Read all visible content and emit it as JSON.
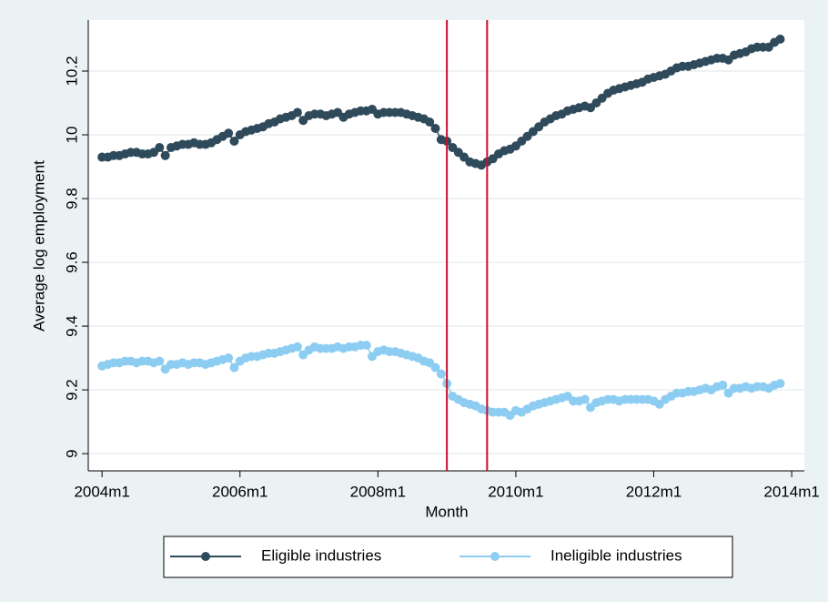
{
  "chart_data": {
    "type": "line",
    "y_label": "Average log employment",
    "x_label": "Month",
    "x": [
      528,
      529,
      530,
      531,
      532,
      533,
      534,
      535,
      536,
      537,
      538,
      539,
      540,
      541,
      542,
      543,
      544,
      545,
      546,
      547,
      548,
      549,
      550,
      551,
      552,
      553,
      554,
      555,
      556,
      557,
      558,
      559,
      560,
      561,
      562,
      563,
      564,
      565,
      566,
      567,
      568,
      569,
      570,
      571,
      572,
      573,
      574,
      575,
      576,
      577,
      578,
      579,
      580,
      581,
      582,
      583,
      584,
      585,
      586,
      587,
      588,
      589,
      590,
      591,
      592,
      593,
      594,
      595,
      596,
      597,
      598,
      599,
      600,
      601,
      602,
      603,
      604,
      605,
      606,
      607,
      608,
      609,
      610,
      611,
      612,
      613,
      614,
      615,
      616,
      617,
      618,
      619,
      620,
      621,
      622,
      623,
      624,
      625,
      626,
      627,
      628,
      629,
      630,
      631,
      632,
      633,
      634,
      635,
      636,
      637,
      638,
      639,
      640,
      641,
      642,
      643,
      644,
      645,
      646
    ],
    "series": [
      {
        "name": "Eligible industries",
        "color": "#2e4a5b",
        "values": [
          9.93,
          9.93,
          9.935,
          9.935,
          9.94,
          9.945,
          9.945,
          9.94,
          9.94,
          9.945,
          9.96,
          9.935,
          9.96,
          9.965,
          9.97,
          9.97,
          9.975,
          9.97,
          9.97,
          9.975,
          9.985,
          9.995,
          10.005,
          9.98,
          10.0,
          10.01,
          10.015,
          10.02,
          10.025,
          10.035,
          10.04,
          10.05,
          10.055,
          10.06,
          10.07,
          10.045,
          10.06,
          10.065,
          10.065,
          10.06,
          10.065,
          10.07,
          10.055,
          10.065,
          10.07,
          10.075,
          10.075,
          10.08,
          10.065,
          10.07,
          10.07,
          10.07,
          10.07,
          10.065,
          10.06,
          10.055,
          10.05,
          10.04,
          10.02,
          9.985,
          9.98,
          9.96,
          9.945,
          9.93,
          9.915,
          9.91,
          9.905,
          9.915,
          9.925,
          9.94,
          9.95,
          9.955,
          9.965,
          9.98,
          9.995,
          10.01,
          10.025,
          10.04,
          10.05,
          10.06,
          10.065,
          10.075,
          10.08,
          10.085,
          10.09,
          10.085,
          10.1,
          10.115,
          10.13,
          10.14,
          10.145,
          10.15,
          10.155,
          10.16,
          10.165,
          10.175,
          10.18,
          10.185,
          10.19,
          10.2,
          10.21,
          10.215,
          10.215,
          10.22,
          10.225,
          10.23,
          10.235,
          10.24,
          10.24,
          10.235,
          10.25,
          10.255,
          10.26,
          10.27,
          10.275,
          10.275,
          10.275,
          10.29,
          10.3
        ]
      },
      {
        "name": "Ineligible industries",
        "color": "#8ecdf2",
        "values": [
          9.275,
          9.28,
          9.285,
          9.285,
          9.29,
          9.29,
          9.285,
          9.29,
          9.29,
          9.285,
          9.29,
          9.265,
          9.28,
          9.28,
          9.285,
          9.28,
          9.285,
          9.285,
          9.28,
          9.285,
          9.29,
          9.295,
          9.3,
          9.27,
          9.29,
          9.3,
          9.305,
          9.305,
          9.31,
          9.315,
          9.315,
          9.32,
          9.325,
          9.33,
          9.335,
          9.31,
          9.325,
          9.335,
          9.33,
          9.33,
          9.33,
          9.335,
          9.33,
          9.335,
          9.335,
          9.34,
          9.34,
          9.305,
          9.32,
          9.325,
          9.32,
          9.32,
          9.315,
          9.31,
          9.305,
          9.3,
          9.29,
          9.285,
          9.27,
          9.25,
          9.22,
          9.18,
          9.17,
          9.16,
          9.155,
          9.15,
          9.14,
          9.135,
          9.13,
          9.13,
          9.13,
          9.12,
          9.135,
          9.13,
          9.14,
          9.15,
          9.155,
          9.16,
          9.165,
          9.17,
          9.175,
          9.18,
          9.165,
          9.165,
          9.17,
          9.145,
          9.16,
          9.165,
          9.17,
          9.17,
          9.165,
          9.17,
          9.17,
          9.17,
          9.17,
          9.17,
          9.165,
          9.155,
          9.17,
          9.18,
          9.19,
          9.19,
          9.195,
          9.195,
          9.2,
          9.205,
          9.2,
          9.21,
          9.215,
          9.19,
          9.205,
          9.205,
          9.21,
          9.205,
          9.21,
          9.21,
          9.205,
          9.215,
          9.22
        ]
      }
    ],
    "xlim": [
      525.6,
      650.2
    ],
    "xticks": [
      {
        "value": 528,
        "label": "2004m1"
      },
      {
        "value": 552,
        "label": "2006m1"
      },
      {
        "value": 576,
        "label": "2008m1"
      },
      {
        "value": 600,
        "label": "2010m1"
      },
      {
        "value": 624,
        "label": "2012m1"
      },
      {
        "value": 648,
        "label": "2014m1"
      }
    ],
    "ylim": [
      8.946,
      10.36
    ],
    "yticks": [
      9,
      9.2,
      9.4,
      9.6,
      9.8,
      10,
      10.2
    ],
    "vlines": [
      588,
      595
    ],
    "vline_color": "#c8102e",
    "grid": true,
    "legend": "bottom"
  }
}
